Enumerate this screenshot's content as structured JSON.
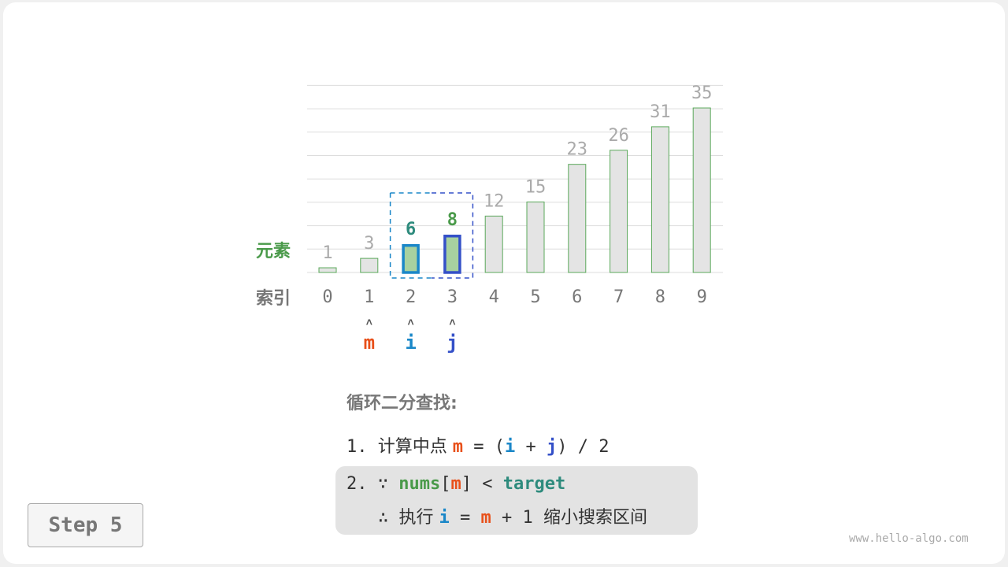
{
  "chart_data": {
    "type": "bar",
    "categories": [
      "0",
      "1",
      "2",
      "3",
      "4",
      "5",
      "6",
      "7",
      "8",
      "9"
    ],
    "values": [
      1,
      3,
      6,
      8,
      12,
      15,
      23,
      26,
      31,
      35
    ],
    "ylim": [
      0,
      40
    ],
    "grid": true,
    "highlight": {
      "i_index": 2,
      "j_index": 3,
      "m_index": 1
    }
  },
  "labels": {
    "elements": "元素",
    "index": "索引"
  },
  "pointers": {
    "m": "m",
    "i": "i",
    "j": "j",
    "arrow": "˄"
  },
  "colors": {
    "bar_fill": "#e4e4e4",
    "bar_stroke": "#5aa85a",
    "active_fill": "#a8d1a0",
    "i_color": "#1a87c8",
    "j_color": "#3450c8",
    "m_color": "#e8501a"
  },
  "steps": {
    "title": "循环二分查找:",
    "s1": {
      "num": "1. ",
      "text": "计算中点 ",
      "m": "m",
      "eq": " = (",
      "i": "i",
      "plus": " + ",
      "j": "j",
      "end": ") / 2"
    },
    "s2": {
      "num": "2. ",
      "because": "∵ ",
      "nums": "nums",
      "lb": "[",
      "m": "m",
      "rb": "]",
      "lt": " < ",
      "target": "target"
    },
    "s3": {
      "therefore": "∴ ",
      "exec": "执行 ",
      "i": "i",
      "eq": " = ",
      "m": "m",
      "plus": " + 1 ",
      "desc": "缩小搜索区间"
    }
  },
  "step_button": "Step 5",
  "watermark": "www.hello-algo.com"
}
